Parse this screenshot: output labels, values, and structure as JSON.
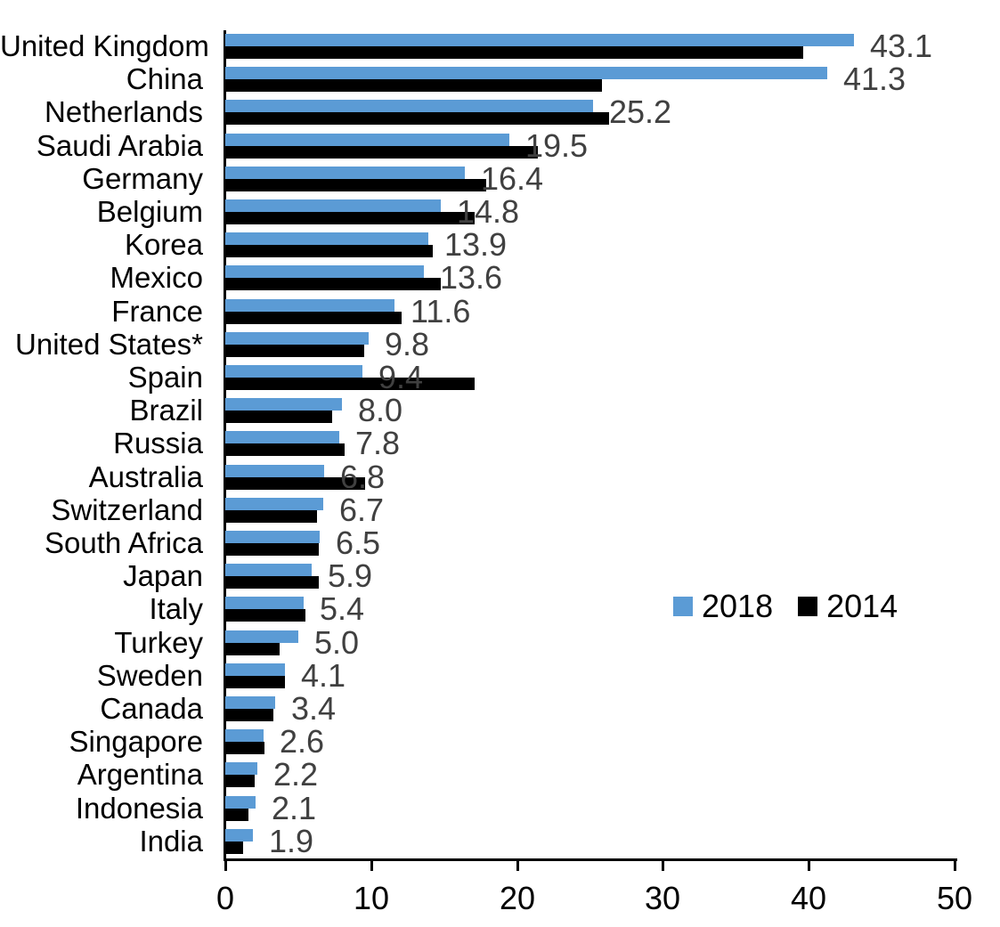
{
  "chart_data": {
    "type": "bar",
    "orientation": "horizontal",
    "title": "",
    "xlabel": "",
    "ylabel": "",
    "xlim": [
      0,
      50
    ],
    "x_ticks": [
      "0",
      "10",
      "20",
      "30",
      "40",
      "50"
    ],
    "grid": false,
    "legend_position": "middle-right",
    "categories": [
      "United Kingdom",
      "China",
      "Netherlands",
      "Saudi Arabia",
      "Germany",
      "Belgium",
      "Korea",
      "Mexico",
      "France",
      "United States*",
      "Spain",
      "Brazil",
      "Russia",
      "Australia",
      "Switzerland",
      "South Africa",
      "Japan",
      "Italy",
      "Turkey",
      "Sweden",
      "Canada",
      "Singapore",
      "Argentina",
      "Indonesia",
      "India"
    ],
    "series": [
      {
        "name": "2018",
        "color": "#5B9BD5",
        "values": [
          43.1,
          41.3,
          25.2,
          19.5,
          16.4,
          14.8,
          13.9,
          13.6,
          11.6,
          9.8,
          9.4,
          8.0,
          7.8,
          6.8,
          6.7,
          6.5,
          5.9,
          5.4,
          5.0,
          4.1,
          3.4,
          2.6,
          2.2,
          2.1,
          1.9
        ]
      },
      {
        "name": "2014",
        "color": "#000000",
        "values": [
          39.6,
          25.8,
          26.3,
          21.4,
          17.9,
          17.1,
          14.2,
          14.8,
          12.1,
          9.5,
          17.1,
          7.3,
          8.2,
          9.6,
          6.3,
          6.4,
          6.4,
          5.5,
          3.7,
          4.1,
          3.3,
          2.7,
          2.0,
          1.6,
          1.2
        ]
      }
    ],
    "data_labels": [
      "43.1",
      "41.3",
      "25.2",
      "19.5",
      "16.4",
      "14.8",
      "13.9",
      "13.6",
      "11.6",
      "9.8",
      "9.4",
      "8.0",
      "7.8",
      "6.8",
      "6.7",
      "6.5",
      "5.9",
      "5.4",
      "5.0",
      "4.1",
      "3.4",
      "2.6",
      "2.2",
      "2.1",
      "1.9"
    ],
    "data_label_color": "#404040",
    "legend": [
      "2018",
      "2014"
    ]
  }
}
